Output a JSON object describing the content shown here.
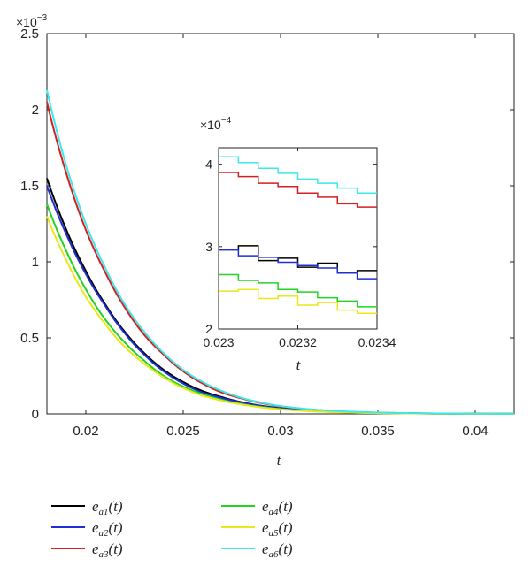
{
  "chart_data": {
    "type": "line",
    "xlabel": "t",
    "ylabel": "",
    "xlim": [
      0.018,
      0.042
    ],
    "ylim": [
      0,
      0.0025
    ],
    "y_exponent": {
      "base": "×10",
      "power": "−3"
    },
    "xticks": [
      0.02,
      0.025,
      0.03,
      0.035,
      0.04
    ],
    "xtick_labels": [
      "0.02",
      "0.025",
      "0.03",
      "0.035",
      "0.04"
    ],
    "yticks": [
      0,
      0.0005,
      0.001,
      0.0015,
      0.002,
      0.0025
    ],
    "ytick_labels": [
      "0",
      "0.5",
      "1",
      "1.5",
      "2",
      "2.5"
    ],
    "grid": false,
    "legend_position": "bottom",
    "series": [
      {
        "name": "e",
        "sub": "a1",
        "arg": "(t)",
        "color": "#000000",
        "x": [
          0.018,
          0.019,
          0.02,
          0.021,
          0.022,
          0.023,
          0.024,
          0.025,
          0.026,
          0.027,
          0.028,
          0.029,
          0.03,
          0.032,
          0.034,
          0.036,
          0.038,
          0.04,
          0.042
        ],
        "y": [
          0.00155,
          0.00121,
          0.00094,
          0.00072,
          0.00054,
          0.0004,
          0.00029,
          0.00021,
          0.00015,
          0.00011,
          7.7e-05,
          5.4e-05,
          3.8e-05,
          1.9e-05,
          9.5e-06,
          4.7e-06,
          2.3e-06,
          1.1e-06,
          5e-07
        ]
      },
      {
        "name": "e",
        "sub": "a2",
        "arg": "(t)",
        "color": "#1f2fd4",
        "x": [
          0.018,
          0.019,
          0.02,
          0.021,
          0.022,
          0.023,
          0.024,
          0.025,
          0.026,
          0.027,
          0.028,
          0.029,
          0.03,
          0.032,
          0.034,
          0.036,
          0.038,
          0.04,
          0.042
        ],
        "y": [
          0.0015,
          0.00118,
          0.00092,
          0.00071,
          0.00053,
          0.00039,
          0.00028,
          0.0002,
          0.00014,
          0.000104,
          7.4e-05,
          5.2e-05,
          3.6e-05,
          1.8e-05,
          9e-06,
          4.5e-06,
          2.2e-06,
          1.1e-06,
          5e-07
        ]
      },
      {
        "name": "e",
        "sub": "a3",
        "arg": "(t)",
        "color": "#d42020",
        "x": [
          0.018,
          0.019,
          0.02,
          0.021,
          0.022,
          0.023,
          0.024,
          0.025,
          0.026,
          0.027,
          0.028,
          0.029,
          0.03,
          0.032,
          0.034,
          0.036,
          0.038,
          0.04,
          0.042
        ],
        "y": [
          0.00205,
          0.00158,
          0.00121,
          0.00093,
          0.0007,
          0.00052,
          0.00039,
          0.00028,
          0.0002,
          0.00014,
          0.000102,
          7.2e-05,
          5e-05,
          2.5e-05,
          1.2e-05,
          6e-06,
          3e-06,
          1.4e-06,
          7e-07
        ]
      },
      {
        "name": "e",
        "sub": "a4",
        "arg": "(t)",
        "color": "#22d422",
        "x": [
          0.018,
          0.019,
          0.02,
          0.021,
          0.022,
          0.023,
          0.024,
          0.025,
          0.026,
          0.027,
          0.028,
          0.029,
          0.03,
          0.032,
          0.034,
          0.036,
          0.038,
          0.04,
          0.042
        ],
        "y": [
          0.00138,
          0.00107,
          0.00082,
          0.00062,
          0.00047,
          0.00035,
          0.00025,
          0.00018,
          0.00013,
          9.2e-05,
          6.5e-05,
          4.6e-05,
          3.2e-05,
          1.6e-05,
          8e-06,
          4e-06,
          2e-06,
          1e-06,
          5e-07
        ]
      },
      {
        "name": "e",
        "sub": "a5",
        "arg": "(t)",
        "color": "#e8e81a",
        "x": [
          0.018,
          0.019,
          0.02,
          0.021,
          0.022,
          0.023,
          0.024,
          0.025,
          0.026,
          0.027,
          0.028,
          0.029,
          0.03,
          0.032,
          0.034,
          0.036,
          0.038,
          0.04,
          0.042
        ],
        "y": [
          0.0013,
          0.00101,
          0.00077,
          0.00059,
          0.00044,
          0.00033,
          0.00024,
          0.00017,
          0.00012,
          8.7e-05,
          6.2e-05,
          4.3e-05,
          3e-05,
          1.5e-05,
          7.5e-06,
          3.7e-06,
          1.8e-06,
          9e-07,
          4e-07
        ]
      },
      {
        "name": "e",
        "sub": "a6",
        "arg": "(t)",
        "color": "#3ce8e8",
        "x": [
          0.018,
          0.019,
          0.02,
          0.021,
          0.022,
          0.023,
          0.024,
          0.025,
          0.026,
          0.027,
          0.028,
          0.029,
          0.03,
          0.032,
          0.034,
          0.036,
          0.038,
          0.04,
          0.042
        ],
        "y": [
          0.00213,
          0.00163,
          0.00125,
          0.00096,
          0.00072,
          0.00054,
          0.0004,
          0.00029,
          0.00021,
          0.00015,
          0.000106,
          7.5e-05,
          5.2e-05,
          2.6e-05,
          1.3e-05,
          6.5e-06,
          3.2e-06,
          1.6e-06,
          8e-07
        ]
      }
    ],
    "inset": {
      "xlabel": "t",
      "xlim": [
        0.023,
        0.0234
      ],
      "ylim": [
        0.0002,
        0.00042
      ],
      "y_exponent": {
        "base": "×10",
        "power": "−4"
      },
      "xticks": [
        0.023,
        0.0232,
        0.0234
      ],
      "xtick_labels": [
        "0.023",
        "0.0232",
        "0.0234"
      ],
      "yticks": [
        0.0002,
        0.0003,
        0.0004
      ],
      "ytick_labels": [
        "2",
        "3",
        "4"
      ],
      "x_steps": [
        0.023,
        0.02305,
        0.0231,
        0.02315,
        0.0232,
        0.02325,
        0.0233,
        0.02335,
        0.0234
      ],
      "series": [
        {
          "color": "#000000",
          "y": [
            0.000296,
            0.000301,
            0.000283,
            0.000286,
            0.000275,
            0.00028,
            0.000268,
            0.000271,
            0.000271
          ]
        },
        {
          "color": "#1f2fd4",
          "y": [
            0.000296,
            0.000289,
            0.000287,
            0.000281,
            0.000277,
            0.000274,
            0.000268,
            0.000261,
            0.000261
          ]
        },
        {
          "color": "#d42020",
          "y": [
            0.00039,
            0.000385,
            0.000377,
            0.000373,
            0.000365,
            0.00036,
            0.000352,
            0.000348,
            0.000348
          ]
        },
        {
          "color": "#22d422",
          "y": [
            0.000266,
            0.000259,
            0.000256,
            0.000248,
            0.000245,
            0.000238,
            0.000234,
            0.000227,
            0.000227
          ]
        },
        {
          "color": "#e8e81a",
          "y": [
            0.000246,
            0.000248,
            0.000237,
            0.00024,
            0.000229,
            0.000232,
            0.000223,
            0.000219,
            0.000219
          ]
        },
        {
          "color": "#3ce8e8",
          "y": [
            0.000409,
            0.000402,
            0.000395,
            0.000389,
            0.000382,
            0.000377,
            0.000371,
            0.000365,
            0.000365
          ]
        }
      ]
    }
  }
}
